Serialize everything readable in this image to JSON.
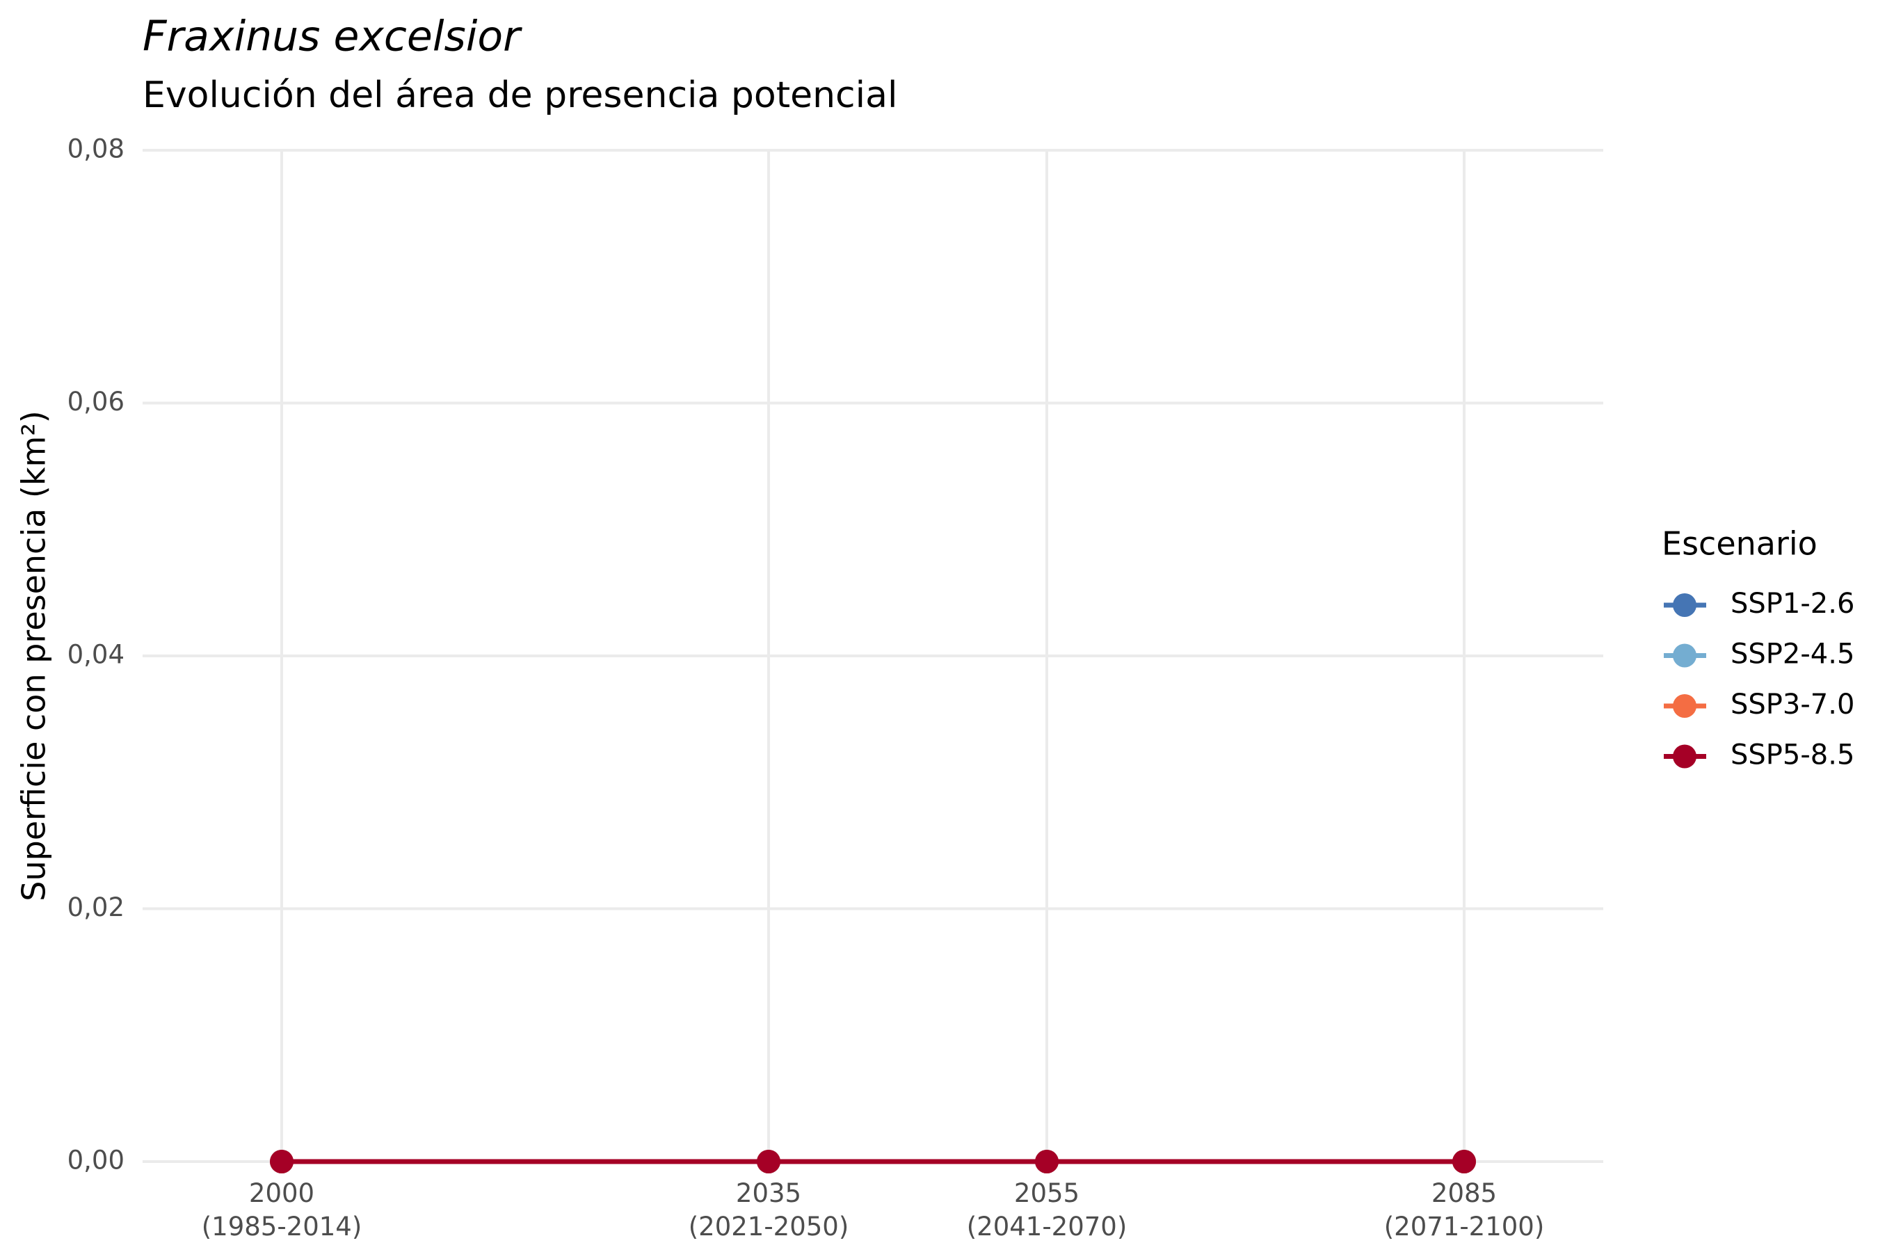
{
  "chart_data": {
    "type": "line",
    "title": "Fraxinus excelsior",
    "subtitle": "Evolución del área de presencia potencial",
    "y_label": "Superficie con presencia (km²)",
    "x": [
      2000,
      2035,
      2055,
      2085
    ],
    "xlim": [
      1990,
      2095
    ],
    "xticks": [
      {
        "value": 2000,
        "label": "2000\n(1985-2014)"
      },
      {
        "value": 2035,
        "label": "2035\n(2021-2050)"
      },
      {
        "value": 2055,
        "label": "2055\n(2041-2070)"
      },
      {
        "value": 2085,
        "label": "2085\n(2071-2100)"
      }
    ],
    "ylim": [
      0,
      0.08
    ],
    "yticks": [
      {
        "value": 0,
        "label": "0,00"
      },
      {
        "value": 0.02,
        "label": "0,02"
      },
      {
        "value": 0.04,
        "label": "0,04"
      },
      {
        "value": 0.06,
        "label": "0,06"
      },
      {
        "value": 0.08,
        "label": "0,08"
      }
    ],
    "grid": true,
    "legend_title": "Escenario",
    "legend_position": "right",
    "series": [
      {
        "name": "SSP1-2.6",
        "color": "#4575b4",
        "values": [
          0,
          0,
          0,
          0
        ]
      },
      {
        "name": "SSP2-4.5",
        "color": "#74add1",
        "values": [
          0,
          0,
          0,
          0
        ]
      },
      {
        "name": "SSP3-7.0",
        "color": "#f46d43",
        "values": [
          0,
          0,
          0,
          0
        ]
      },
      {
        "name": "SSP5-8.5",
        "color": "#a50026",
        "values": [
          0,
          0,
          0,
          0
        ]
      }
    ]
  }
}
